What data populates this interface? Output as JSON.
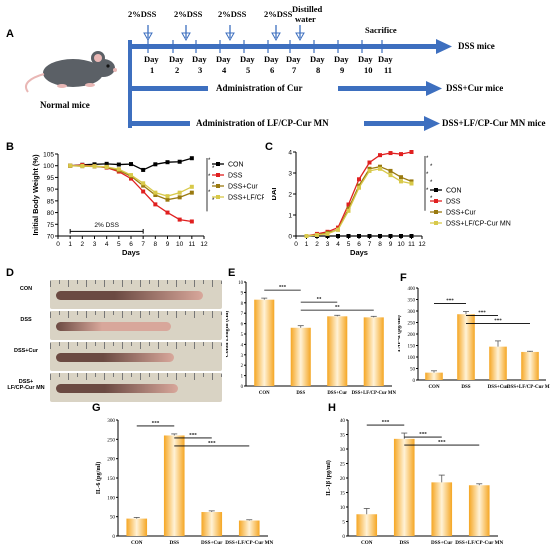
{
  "panels": {
    "a": "A",
    "b": "B",
    "c": "C",
    "d": "D",
    "e": "E",
    "f": "F",
    "g": "G",
    "h": "H"
  },
  "timeline": {
    "top_labels": [
      "2%DSS",
      "2%DSS",
      "2%DSS",
      "2%DSS",
      "Distilled water",
      "Sacrifice"
    ],
    "day_word": "Day",
    "days": [
      "1",
      "2",
      "3",
      "4",
      "5",
      "6",
      "7",
      "8",
      "9",
      "10",
      "11"
    ],
    "mouse_label": "Normal mice",
    "row1_label": "DSS mice",
    "row2_mid": "Administration of Cur",
    "row2_label": "DSS+Cur mice",
    "row3_mid": "Administration of LF/CP-Cur MN",
    "row3_label": "DSS+LF/CP-Cur MN mice",
    "colors": {
      "arrow": "#3d6fbf",
      "mouse": "#5b6066",
      "ear": "#e9b7b5"
    }
  },
  "photo": {
    "rows": [
      "CON",
      "DSS",
      "DSS+Cur",
      "DSS+\nLF/CP-Cur MN"
    ],
    "ruler_color": "#d9d3c4",
    "tissue_color": "#6b4a42",
    "tissue_pink": "#d8a79b"
  },
  "chart_data": [
    {
      "id": "B",
      "type": "line",
      "ylabel": "Initial Body Weight (%)",
      "xlabel": "Days",
      "x": [
        1,
        2,
        3,
        4,
        5,
        6,
        7,
        8,
        9,
        10,
        11
      ],
      "xlim": [
        0,
        12
      ],
      "ylim": [
        70,
        105
      ],
      "yticks": [
        70,
        75,
        80,
        85,
        90,
        95,
        100,
        105
      ],
      "annotation": "2% DSS",
      "series": [
        {
          "name": "CON",
          "color": "#000000",
          "values": [
            100,
            100.4,
            100.6,
            100.8,
            100.5,
            100.7,
            98.2,
            100.6,
            101.5,
            101.7,
            103.2
          ]
        },
        {
          "name": "DSS",
          "color": "#e02020",
          "values": [
            100,
            100.3,
            99.8,
            99.2,
            97.5,
            94.5,
            89.0,
            83.5,
            80.0,
            77.0,
            76.2
          ]
        },
        {
          "name": "DSS+Cur",
          "color": "#9a7a10",
          "values": [
            100,
            99.8,
            99.7,
            99.4,
            98.0,
            95.5,
            91.5,
            87.5,
            85.5,
            86.5,
            88.5
          ]
        },
        {
          "name": "DSS+LF/CP-Cur MN",
          "color": "#d8c94a",
          "values": [
            100,
            99.9,
            99.8,
            99.5,
            98.5,
            96.0,
            92.5,
            88.5,
            87.0,
            88.5,
            91.0
          ]
        }
      ]
    },
    {
      "id": "C",
      "type": "line",
      "ylabel": "DAI",
      "xlabel": "Days",
      "x": [
        1,
        2,
        3,
        4,
        5,
        6,
        7,
        8,
        9,
        10,
        11
      ],
      "xlim": [
        0,
        12
      ],
      "ylim": [
        0,
        4
      ],
      "yticks": [
        0,
        1,
        2,
        3,
        4
      ],
      "series": [
        {
          "name": "CON",
          "color": "#000000",
          "values": [
            0,
            0,
            0,
            0,
            0,
            0,
            0,
            0,
            0,
            0,
            0
          ]
        },
        {
          "name": "DSS",
          "color": "#e02020",
          "values": [
            0,
            0.1,
            0.2,
            0.4,
            1.5,
            2.7,
            3.5,
            3.85,
            3.95,
            3.9,
            4.0
          ]
        },
        {
          "name": "DSS+Cur",
          "color": "#9a7a10",
          "values": [
            0,
            0.05,
            0.15,
            0.3,
            1.3,
            2.4,
            3.2,
            3.3,
            3.1,
            2.8,
            2.6
          ]
        },
        {
          "name": "DSS+LF/CP-Cur MN",
          "color": "#d8c94a",
          "values": [
            0,
            0.05,
            0.1,
            0.3,
            1.2,
            2.3,
            3.1,
            3.2,
            2.9,
            2.6,
            2.5
          ]
        }
      ]
    },
    {
      "id": "E",
      "type": "bar",
      "ylabel": "Colon Length (cm)",
      "categories": [
        "CON",
        "DSS",
        "DSS+Cur",
        "DSS+LF/CP-Cur MN"
      ],
      "values": [
        8.3,
        5.6,
        6.7,
        6.6
      ],
      "errors": [
        0.15,
        0.2,
        0.1,
        0.1
      ],
      "ylim": [
        0,
        10
      ],
      "yticks": [
        0,
        1,
        2,
        3,
        4,
        5,
        6,
        7,
        8,
        9,
        10
      ],
      "sig": [
        {
          "from": 0,
          "to": 1,
          "label": "***"
        },
        {
          "from": 1,
          "to": 2,
          "label": "**"
        },
        {
          "from": 1,
          "to": 3,
          "label": "**"
        }
      ]
    },
    {
      "id": "F",
      "type": "bar",
      "ylabel": "TNF-α (pg/ml)",
      "categories": [
        "CON",
        "DSS",
        "DSS+Cur",
        "DSS+LF/CP-Cur MN"
      ],
      "values": [
        32,
        286,
        145,
        122
      ],
      "errors": [
        8,
        12,
        25,
        3
      ],
      "ylim": [
        0,
        400
      ],
      "yticks": [
        0,
        50,
        100,
        150,
        200,
        250,
        300,
        350,
        400
      ],
      "sig": [
        {
          "from": 0,
          "to": 1,
          "label": "***"
        },
        {
          "from": 1,
          "to": 2,
          "label": "***"
        },
        {
          "from": 1,
          "to": 3,
          "label": "***"
        }
      ]
    },
    {
      "id": "G",
      "type": "bar",
      "ylabel": "IL-6 (pg/ml)",
      "categories": [
        "CON",
        "DSS",
        "DSS+Cur",
        "DSS+LF/CP-Cur MN"
      ],
      "values": [
        45,
        260,
        62,
        40
      ],
      "errors": [
        3,
        4,
        3,
        2
      ],
      "ylim": [
        0,
        300
      ],
      "yticks": [
        0,
        50,
        100,
        150,
        200,
        250,
        300
      ],
      "sig": [
        {
          "from": 0,
          "to": 1,
          "label": "***"
        },
        {
          "from": 1,
          "to": 2,
          "label": "***"
        },
        {
          "from": 1,
          "to": 3,
          "label": "***"
        }
      ]
    },
    {
      "id": "H",
      "type": "bar",
      "ylabel": "IL-1β (pg/ml)",
      "categories": [
        "CON",
        "DSS",
        "DSS+Cur",
        "DSS+LF/CP-Cur MN"
      ],
      "values": [
        7.5,
        33.5,
        18.5,
        17.5
      ],
      "errors": [
        2,
        2,
        2.5,
        0.5
      ],
      "ylim": [
        0,
        40
      ],
      "yticks": [
        0,
        5,
        10,
        15,
        20,
        25,
        30,
        35,
        40
      ],
      "sig": [
        {
          "from": 0,
          "to": 1,
          "label": "***"
        },
        {
          "from": 1,
          "to": 2,
          "label": "***"
        },
        {
          "from": 1,
          "to": 3,
          "label": "***"
        }
      ]
    }
  ]
}
